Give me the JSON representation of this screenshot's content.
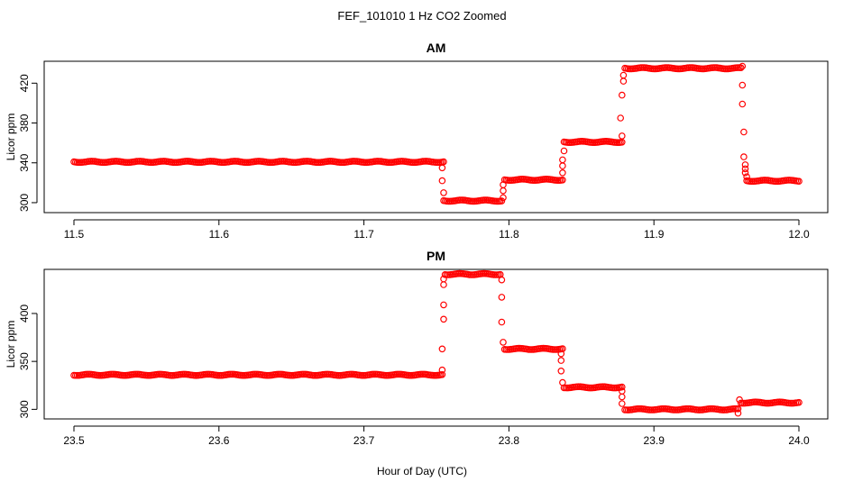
{
  "figure": {
    "title": "FEF_101010  1 Hz CO2 Zoomed",
    "xlabel": "Hour of Day (UTC)"
  },
  "colors": {
    "points": "#ff0000",
    "axis": "#000000",
    "background": "#ffffff"
  },
  "chart_data": [
    {
      "type": "scatter",
      "title": "AM",
      "ylabel": "Licor ppm",
      "xlim": [
        11.5,
        12.0
      ],
      "ylim": [
        290,
        442
      ],
      "xticks": [
        11.5,
        11.6,
        11.7,
        11.8,
        11.9,
        12.0
      ],
      "xtick_labels": [
        "11.5",
        "11.6",
        "11.7",
        "11.8",
        "11.9",
        "12.0"
      ],
      "yticks": [
        300,
        340,
        380,
        420
      ],
      "ytick_labels": [
        "300",
        "340",
        "380",
        "420"
      ],
      "grid": false,
      "marker": "open-circle",
      "plateaus": [
        {
          "x_start": 11.5,
          "x_end": 11.755,
          "y": 341
        },
        {
          "x_start": 11.755,
          "x_end": 11.795,
          "y": 302
        },
        {
          "x_start": 11.797,
          "x_end": 11.837,
          "y": 323
        },
        {
          "x_start": 11.838,
          "x_end": 11.878,
          "y": 361
        },
        {
          "x_start": 11.88,
          "x_end": 11.96,
          "y": 435
        },
        {
          "x_start": 11.964,
          "x_end": 12.0,
          "y": 322
        }
      ],
      "transitions": [
        {
          "x": 11.754,
          "y": 335
        },
        {
          "x": 11.754,
          "y": 322
        },
        {
          "x": 11.755,
          "y": 310
        },
        {
          "x": 11.796,
          "y": 305
        },
        {
          "x": 11.796,
          "y": 312
        },
        {
          "x": 11.796,
          "y": 318
        },
        {
          "x": 11.837,
          "y": 330
        },
        {
          "x": 11.837,
          "y": 337
        },
        {
          "x": 11.837,
          "y": 343
        },
        {
          "x": 11.838,
          "y": 352
        },
        {
          "x": 11.878,
          "y": 367
        },
        {
          "x": 11.877,
          "y": 385
        },
        {
          "x": 11.878,
          "y": 408
        },
        {
          "x": 11.879,
          "y": 422
        },
        {
          "x": 11.879,
          "y": 428
        },
        {
          "x": 11.961,
          "y": 437
        },
        {
          "x": 11.961,
          "y": 418
        },
        {
          "x": 11.961,
          "y": 399
        },
        {
          "x": 11.962,
          "y": 371
        },
        {
          "x": 11.962,
          "y": 346
        },
        {
          "x": 11.963,
          "y": 338
        },
        {
          "x": 11.963,
          "y": 334
        },
        {
          "x": 11.963,
          "y": 330
        },
        {
          "x": 11.964,
          "y": 326
        }
      ]
    },
    {
      "type": "scatter",
      "title": "PM",
      "ylabel": "Licor ppm",
      "xlim": [
        23.5,
        24.0
      ],
      "ylim": [
        290,
        446
      ],
      "xticks": [
        23.5,
        23.6,
        23.7,
        23.8,
        23.9,
        24.0
      ],
      "xtick_labels": [
        "23.5",
        "23.6",
        "23.7",
        "23.8",
        "23.9",
        "24.0"
      ],
      "yticks": [
        300,
        350,
        400
      ],
      "ytick_labels": [
        "300",
        "350",
        "400"
      ],
      "grid": false,
      "marker": "open-circle",
      "plateaus": [
        {
          "x_start": 23.5,
          "x_end": 23.754,
          "y": 336
        },
        {
          "x_start": 23.756,
          "x_end": 23.794,
          "y": 441
        },
        {
          "x_start": 23.797,
          "x_end": 23.837,
          "y": 363
        },
        {
          "x_start": 23.838,
          "x_end": 23.878,
          "y": 323
        },
        {
          "x_start": 23.88,
          "x_end": 23.958,
          "y": 300
        },
        {
          "x_start": 23.96,
          "x_end": 24.0,
          "y": 307
        }
      ],
      "transitions": [
        {
          "x": 23.754,
          "y": 341
        },
        {
          "x": 23.754,
          "y": 363
        },
        {
          "x": 23.755,
          "y": 394
        },
        {
          "x": 23.755,
          "y": 409
        },
        {
          "x": 23.755,
          "y": 430
        },
        {
          "x": 23.755,
          "y": 436
        },
        {
          "x": 23.795,
          "y": 435
        },
        {
          "x": 23.795,
          "y": 417
        },
        {
          "x": 23.795,
          "y": 391
        },
        {
          "x": 23.796,
          "y": 370
        },
        {
          "x": 23.836,
          "y": 358
        },
        {
          "x": 23.836,
          "y": 351
        },
        {
          "x": 23.836,
          "y": 340
        },
        {
          "x": 23.837,
          "y": 328
        },
        {
          "x": 23.878,
          "y": 319
        },
        {
          "x": 23.878,
          "y": 313
        },
        {
          "x": 23.878,
          "y": 306
        },
        {
          "x": 23.958,
          "y": 296
        },
        {
          "x": 23.959,
          "y": 310
        }
      ]
    }
  ]
}
